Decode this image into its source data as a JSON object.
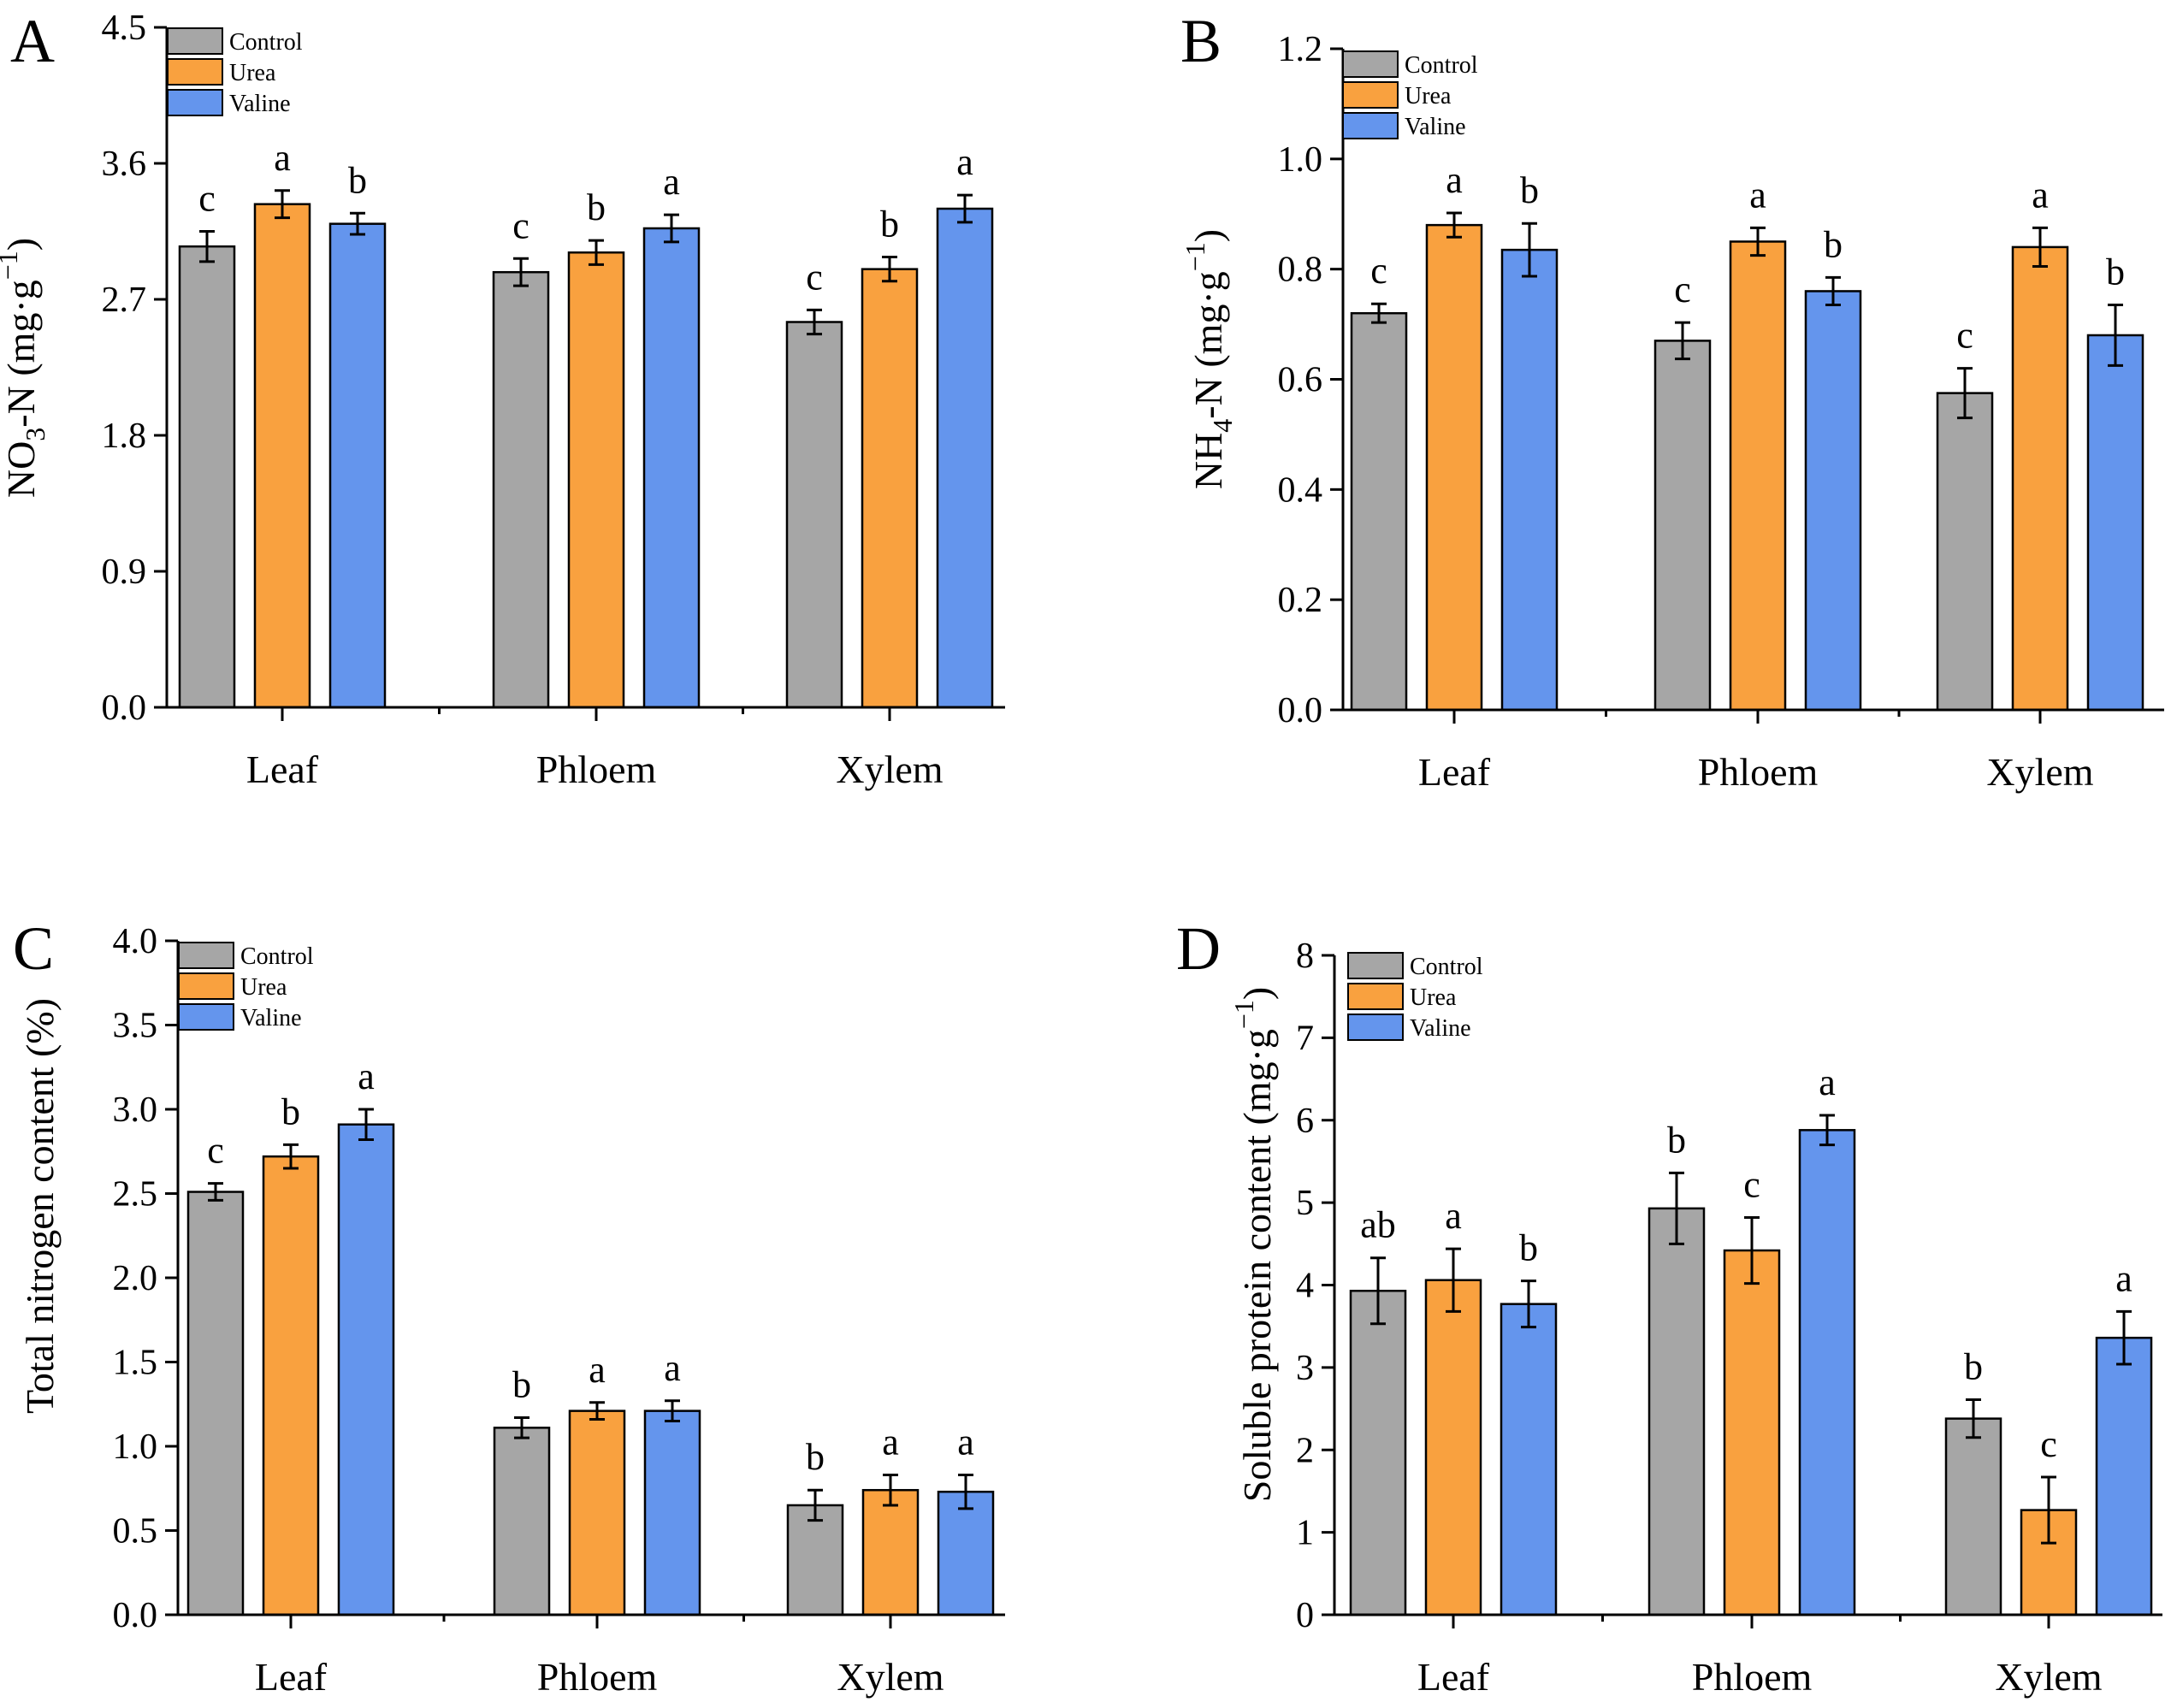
{
  "figure": {
    "colors": {
      "Control": "#A6A6A6",
      "Urea": "#F9A13F",
      "Valine": "#6495ED",
      "axis": "#000000"
    },
    "legend": [
      "Control",
      "Urea",
      "Valine"
    ]
  },
  "chart_data": [
    {
      "panel": "A",
      "type": "bar",
      "title": "",
      "ylabel_main": "NO",
      "ylabel_sub": "3",
      "ylabel_rest": "-N  (mg·g",
      "ylabel_sup": "−1",
      "ylabel_close": ")",
      "xlabel": "",
      "categories": [
        "Leaf",
        "Phloem",
        "Xylem"
      ],
      "ylim": [
        0,
        4.5
      ],
      "yticks": [
        "0.0",
        "0.9",
        "1.8",
        "2.7",
        "3.6",
        "4.5"
      ],
      "series": [
        {
          "name": "Control",
          "values": [
            3.05,
            2.88,
            2.55
          ],
          "errors": [
            0.1,
            0.09,
            0.08
          ],
          "letters": [
            "c",
            "c",
            "c"
          ]
        },
        {
          "name": "Urea",
          "values": [
            3.33,
            3.01,
            2.9
          ],
          "errors": [
            0.09,
            0.08,
            0.08
          ],
          "letters": [
            "a",
            "b",
            "b"
          ]
        },
        {
          "name": "Valine",
          "values": [
            3.2,
            3.17,
            3.3
          ],
          "errors": [
            0.07,
            0.09,
            0.09
          ],
          "letters": [
            "b",
            "a",
            "a"
          ]
        }
      ]
    },
    {
      "panel": "B",
      "type": "bar",
      "title": "",
      "ylabel_main": "NH",
      "ylabel_sub": "4",
      "ylabel_rest": "-N  (mg·g",
      "ylabel_sup": "−1",
      "ylabel_close": ")",
      "xlabel": "",
      "categories": [
        "Leaf",
        "Phloem",
        "Xylem"
      ],
      "ylim": [
        0,
        1.2
      ],
      "yticks": [
        "0.0",
        "0.2",
        "0.4",
        "0.6",
        "0.8",
        "1.0",
        "1.2"
      ],
      "series": [
        {
          "name": "Control",
          "values": [
            0.72,
            0.67,
            0.575
          ],
          "errors": [
            0.017,
            0.033,
            0.045
          ],
          "letters": [
            "c",
            "c",
            "c"
          ]
        },
        {
          "name": "Urea",
          "values": [
            0.88,
            0.85,
            0.84
          ],
          "errors": [
            0.022,
            0.025,
            0.035
          ],
          "letters": [
            "a",
            "a",
            "a"
          ]
        },
        {
          "name": "Valine",
          "values": [
            0.835,
            0.76,
            0.68
          ],
          "errors": [
            0.048,
            0.025,
            0.055
          ],
          "letters": [
            "b",
            "b",
            "b"
          ]
        }
      ]
    },
    {
      "panel": "C",
      "type": "bar",
      "title": "",
      "ylabel_main": "Total nitrogen content (%)",
      "ylabel_sub": "",
      "ylabel_rest": "",
      "ylabel_sup": "",
      "ylabel_close": "",
      "xlabel": "",
      "categories": [
        "Leaf",
        "Phloem",
        "Xylem"
      ],
      "ylim": [
        0,
        4.0
      ],
      "yticks": [
        "0.0",
        "0.5",
        "1.0",
        "1.5",
        "2.0",
        "2.5",
        "3.0",
        "3.5",
        "4.0"
      ],
      "series": [
        {
          "name": "Control",
          "values": [
            2.51,
            1.11,
            0.65
          ],
          "errors": [
            0.05,
            0.06,
            0.09
          ],
          "letters": [
            "c",
            "b",
            "b"
          ]
        },
        {
          "name": "Urea",
          "values": [
            2.72,
            1.21,
            0.74
          ],
          "errors": [
            0.07,
            0.05,
            0.09
          ],
          "letters": [
            "b",
            "a",
            "a"
          ]
        },
        {
          "name": "Valine",
          "values": [
            2.91,
            1.21,
            0.73
          ],
          "errors": [
            0.09,
            0.06,
            0.1
          ],
          "letters": [
            "a",
            "a",
            "a"
          ]
        }
      ]
    },
    {
      "panel": "D",
      "type": "bar",
      "title": "",
      "ylabel_main": "Soluble protein content (mg·g",
      "ylabel_sub": "",
      "ylabel_rest": "",
      "ylabel_sup": "−1",
      "ylabel_close": ")",
      "xlabel": "",
      "categories": [
        "Leaf",
        "Phloem",
        "Xylem"
      ],
      "ylim": [
        0,
        8
      ],
      "yticks": [
        "0",
        "1",
        "2",
        "3",
        "4",
        "5",
        "6",
        "7",
        "8"
      ],
      "series": [
        {
          "name": "Control",
          "values": [
            3.93,
            4.93,
            2.38
          ],
          "errors": [
            0.4,
            0.43,
            0.23
          ],
          "letters": [
            "ab",
            "b",
            "b"
          ]
        },
        {
          "name": "Urea",
          "values": [
            4.06,
            4.42,
            1.27
          ],
          "errors": [
            0.38,
            0.4,
            0.4
          ],
          "letters": [
            "a",
            "c",
            "c"
          ]
        },
        {
          "name": "Valine",
          "values": [
            3.77,
            5.88,
            3.36
          ],
          "errors": [
            0.28,
            0.18,
            0.32
          ],
          "letters": [
            "b",
            "a",
            "a"
          ]
        }
      ]
    }
  ]
}
